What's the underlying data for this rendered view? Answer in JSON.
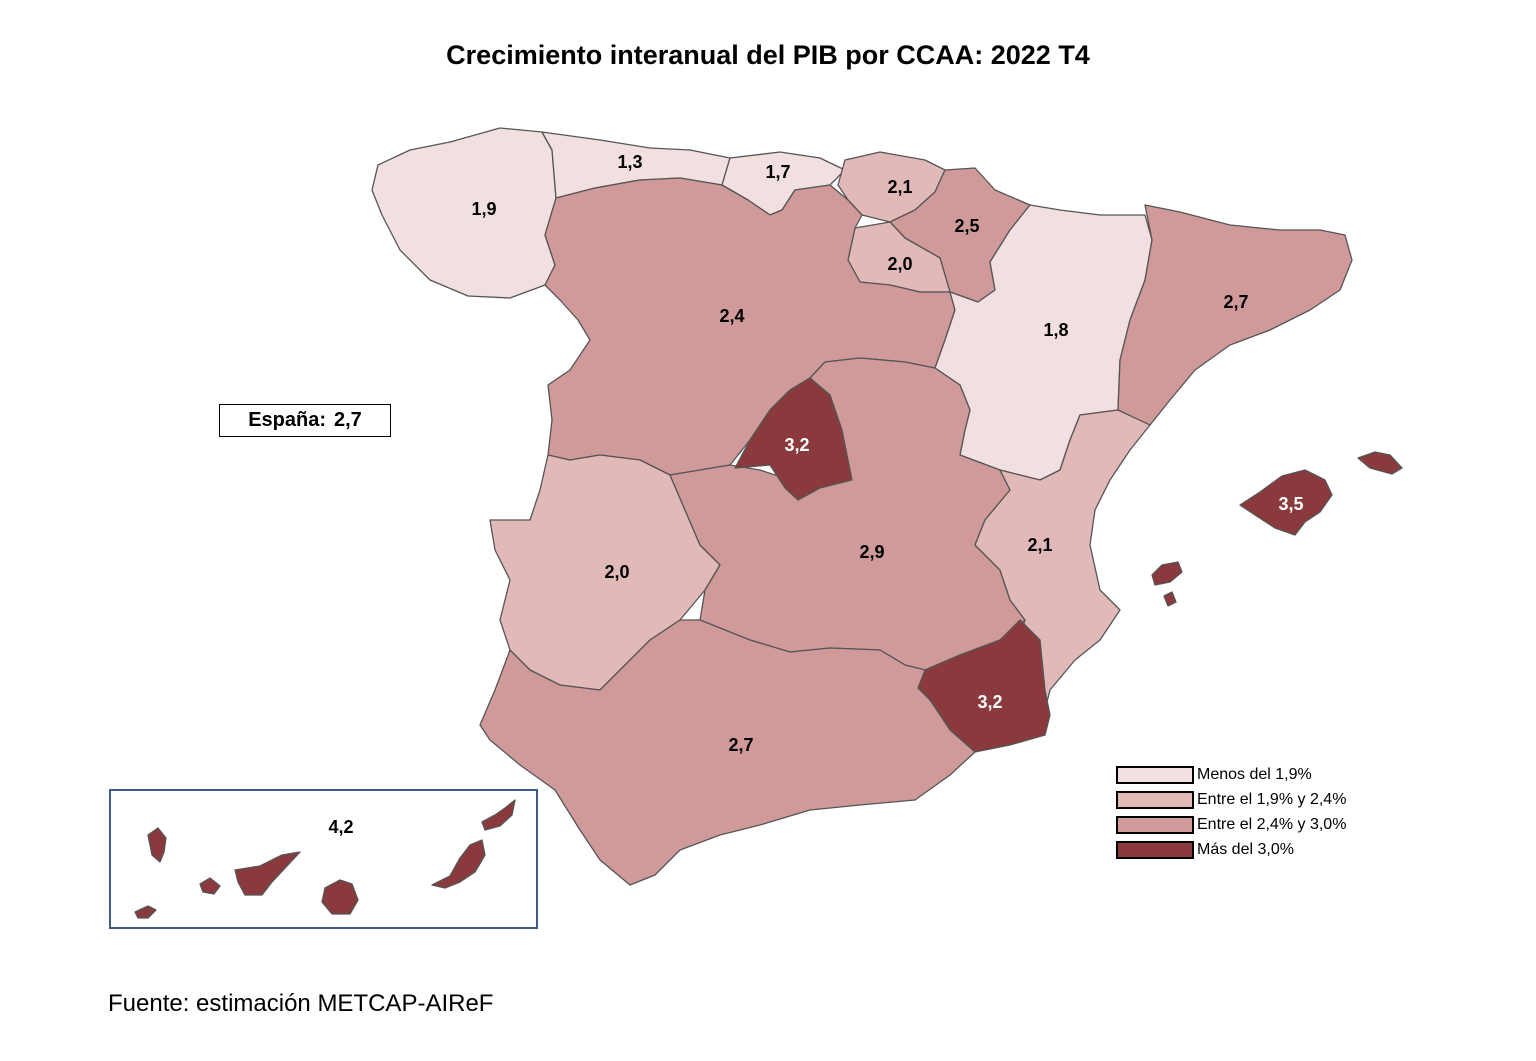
{
  "title": "Crecimiento interanual del PIB por CCAA: 2022 T4",
  "spain_total": {
    "label": "España:",
    "value": "2,7"
  },
  "colors": {
    "below_1_9": "#f2dfdf",
    "between_1_9_2_4": "#e2b9b9",
    "between_2_4_3_0": "#d19a9a",
    "above_3_0": "#8a3a3c",
    "border": "#555555",
    "canarias_box": "#3f5b87"
  },
  "regions": [
    {
      "id": "galicia",
      "value": "1,9",
      "category": "below_1_9"
    },
    {
      "id": "asturias",
      "value": "1,3",
      "category": "below_1_9"
    },
    {
      "id": "cantabria",
      "value": "1,7",
      "category": "below_1_9"
    },
    {
      "id": "pais-vasco",
      "value": "2,1",
      "category": "between_1_9_2_4"
    },
    {
      "id": "navarra",
      "value": "2,5",
      "category": "between_2_4_3_0"
    },
    {
      "id": "la-rioja",
      "value": "2,0",
      "category": "between_1_9_2_4"
    },
    {
      "id": "aragon",
      "value": "1,8",
      "category": "below_1_9"
    },
    {
      "id": "cataluna",
      "value": "2,7",
      "category": "between_2_4_3_0"
    },
    {
      "id": "castilla-leon",
      "value": "2,4",
      "category": "between_2_4_3_0"
    },
    {
      "id": "madrid",
      "value": "3,2",
      "category": "above_3_0"
    },
    {
      "id": "castilla-la-mancha",
      "value": "2,9",
      "category": "between_2_4_3_0"
    },
    {
      "id": "extremadura",
      "value": "2,0",
      "category": "between_1_9_2_4"
    },
    {
      "id": "valencia",
      "value": "2,1",
      "category": "between_1_9_2_4"
    },
    {
      "id": "murcia",
      "value": "3,2",
      "category": "above_3_0"
    },
    {
      "id": "andalucia",
      "value": "2,7",
      "category": "between_2_4_3_0"
    },
    {
      "id": "baleares",
      "value": "3,5",
      "category": "above_3_0"
    },
    {
      "id": "canarias",
      "value": "4,2",
      "category": "above_3_0"
    }
  ],
  "legend": [
    {
      "label": "Menos del 1,9%",
      "category": "below_1_9"
    },
    {
      "label": "Entre el 1,9% y 2,4%",
      "category": "between_1_9_2_4"
    },
    {
      "label": "Entre el 2,4% y 3,0%",
      "category": "between_2_4_3_0"
    },
    {
      "label": "Más del 3,0%",
      "category": "above_3_0"
    }
  ],
  "source": "Fuente: estimación METCAP-AIReF"
}
